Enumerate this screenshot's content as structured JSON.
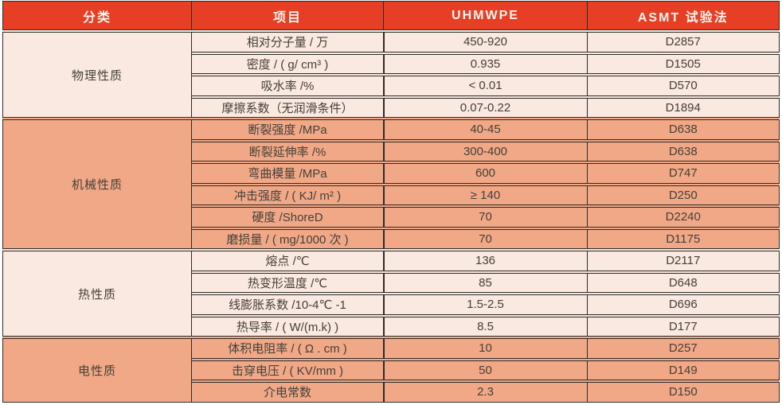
{
  "table": {
    "columns": [
      "分类",
      "项目",
      "UHMWPE",
      "ASMT 试验法"
    ],
    "sections": [
      {
        "id": "physical",
        "category": "物理性质",
        "tone": "light",
        "rows": [
          {
            "item": "相对分子量 / 万",
            "uhmwpe": "450-920",
            "astm": "D2857"
          },
          {
            "item": "密度 / ( g/ cm³ )",
            "uhmwpe": "0.935",
            "astm": "D1505"
          },
          {
            "item": "吸水率 /%",
            "uhmwpe": "< 0.01",
            "astm": "D570"
          },
          {
            "item": "摩擦系数（无润滑条件）",
            "uhmwpe": "0.07-0.22",
            "astm": "D1894"
          }
        ]
      },
      {
        "id": "mechanical",
        "category": "机械性质",
        "tone": "salmon",
        "rows": [
          {
            "item": "断裂强度 /MPa",
            "uhmwpe": "40-45",
            "astm": "D638"
          },
          {
            "item": "断裂延伸率 /%",
            "uhmwpe": "300-400",
            "astm": "D638"
          },
          {
            "item": "弯曲模量 /MPa",
            "uhmwpe": "600",
            "astm": "D747"
          },
          {
            "item": "冲击强度 / ( KJ/ m² )",
            "uhmwpe": "≥ 140",
            "astm": "D250"
          },
          {
            "item": "硬度 /ShoreD",
            "uhmwpe": "70",
            "astm": "D2240"
          },
          {
            "item": "磨损量 / ( mg/1000 次 )",
            "uhmwpe": "70",
            "astm": "D1175"
          }
        ]
      },
      {
        "id": "thermal",
        "category": "热性质",
        "tone": "light",
        "rows": [
          {
            "item": "熔点 /℃",
            "uhmwpe": "136",
            "astm": "D2117"
          },
          {
            "item": "热变形温度 /℃",
            "uhmwpe": "85",
            "astm": "D648"
          },
          {
            "item": "线膨胀系数 /10-4℃ -1",
            "uhmwpe": "1.5-2.5",
            "astm": "D696"
          },
          {
            "item": "热导率 / ( W/(m.k) )",
            "uhmwpe": "8.5",
            "astm": "D177"
          }
        ]
      },
      {
        "id": "electrical",
        "category": "电性质",
        "tone": "salmon",
        "rows": [
          {
            "item": "体积电阻率 / ( Ω . cm )",
            "uhmwpe": "10",
            "astm": "D257"
          },
          {
            "item": "击穿电压 / ( KV/mm )",
            "uhmwpe": "50",
            "astm": "D149"
          },
          {
            "item": "介电常数",
            "uhmwpe": "2.3",
            "astm": "D150"
          }
        ]
      }
    ]
  },
  "colors": {
    "header_bg": "#E73F25",
    "header_text": "#FDF4EE",
    "row_light_bg": "#F9E9E0",
    "row_salmon_bg": "#F1A886",
    "border": "#2E2A27",
    "text": "#454039"
  }
}
